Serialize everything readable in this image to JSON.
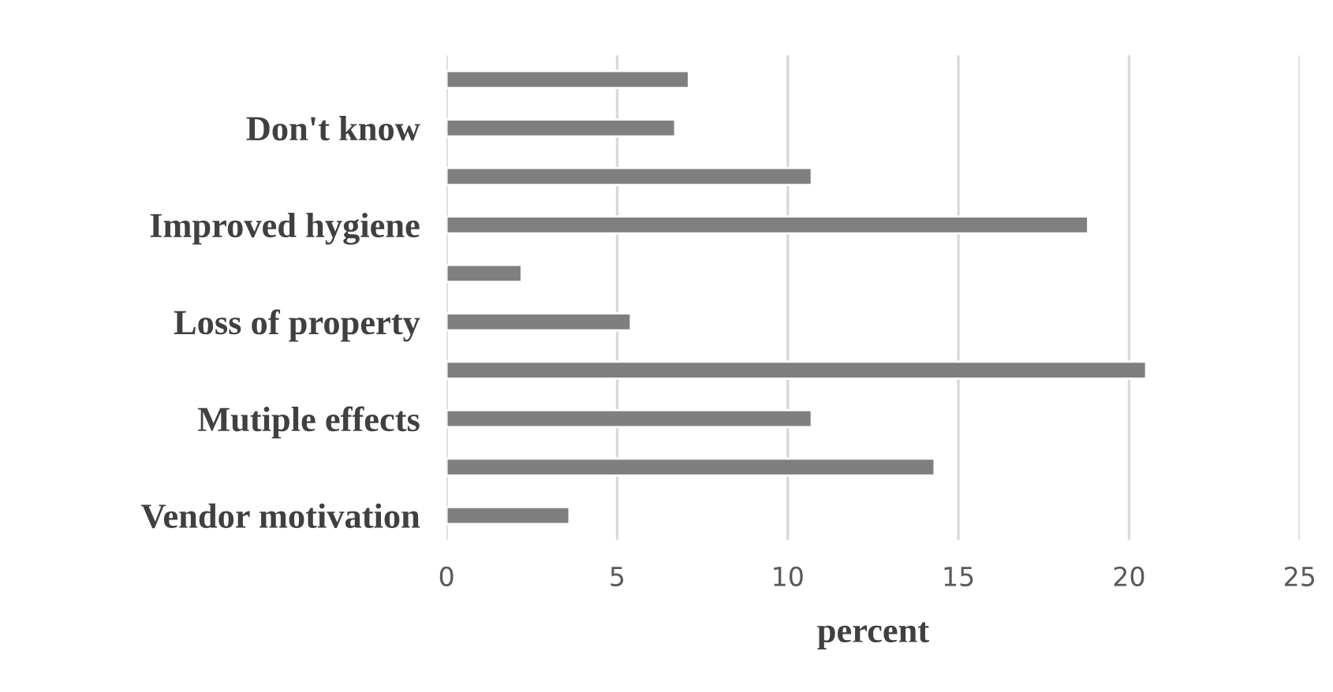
{
  "chart_data": {
    "type": "bar",
    "orientation": "horizontal",
    "xlabel": "percent",
    "categories": [
      null,
      "Don't know",
      null,
      "Improved hygiene",
      null,
      "Loss of property",
      null,
      "Mutiple effects",
      null,
      "Vendor motivation"
    ],
    "values": [
      7.1,
      6.7,
      10.7,
      18.8,
      2.2,
      5.4,
      20.5,
      10.7,
      14.3,
      3.6
    ],
    "color": "#7f7f7f",
    "xlim": [
      0,
      25
    ],
    "xticks": [
      0,
      5,
      10,
      15,
      20,
      25
    ],
    "grid": "x"
  }
}
